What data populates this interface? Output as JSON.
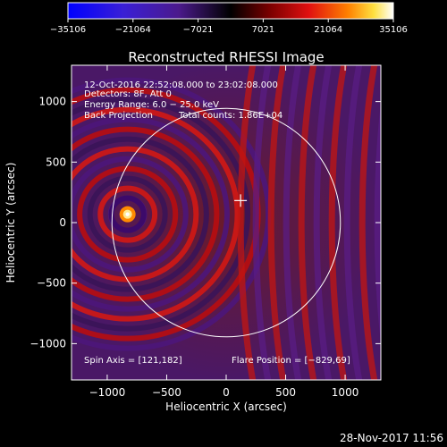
{
  "chart_data": {
    "type": "heatmap",
    "title": "Reconstructed RHESSI Image",
    "xlabel": "Heliocentric X (arcsec)",
    "ylabel": "Heliocentric Y (arcsec)",
    "xlim": [
      -1300,
      1300
    ],
    "ylim": [
      -1300,
      1300
    ],
    "xticks": [
      -1000,
      -500,
      0,
      500,
      1000
    ],
    "xtick_labels": [
      "−1000",
      "−500",
      "0",
      "500",
      "1000"
    ],
    "yticks": [
      -1000,
      -500,
      0,
      500,
      1000
    ],
    "ytick_labels": [
      "−1000",
      "−500",
      "0",
      "500",
      "1000"
    ],
    "colorbar": {
      "min": -35106,
      "max": 35106,
      "ticks": [
        -35106,
        -21064,
        -7021,
        7021,
        21064,
        35106
      ],
      "tick_labels": [
        "−35106",
        "−21064",
        "−7021",
        "7021",
        "21064",
        "35106"
      ]
    },
    "annotations": [
      "12-Oct-2016 22:52:08.000 to 23:02:08.000",
      "Detectors: 8F, Att 0",
      "Energy Range: 6.0 − 25.0 keV",
      "Back Projection",
      "Total counts: 1.86E+04"
    ],
    "spin_axis_label": "Spin Axis = [121,182]",
    "flare_position_label": "Flare Position = [−829,69]",
    "spin_axis": [
      121,
      182
    ],
    "flare_position": [
      -829,
      69
    ],
    "solar_limb_radius_arcsec": 960,
    "grid": false,
    "colormap": "red-temperature (blue negative, black zero, red/yellow/white positive)"
  },
  "footer": {
    "timestamp": "28-Nov-2017 11:56"
  }
}
